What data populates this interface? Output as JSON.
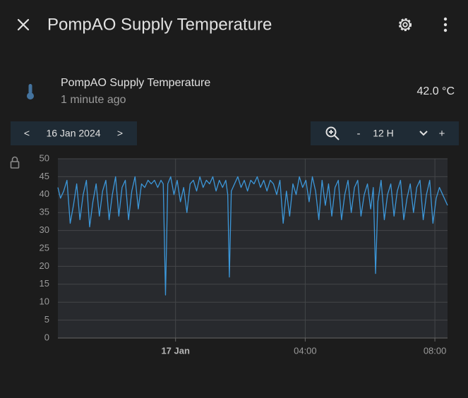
{
  "header": {
    "title": "PompAO Supply Temperature"
  },
  "entity": {
    "name": "PompAO Supply Temperature",
    "last_changed": "1 minute ago",
    "state": "42.0 °C"
  },
  "date_picker": {
    "prev": "<",
    "date": "16 Jan 2024",
    "next": ">"
  },
  "range_picker": {
    "minus": "-",
    "range": "12 H",
    "plus": "+"
  },
  "chart_data": {
    "type": "line",
    "color": "#3c97d9",
    "grid": true,
    "xlim": [
      -3.63,
      8.39
    ],
    "xticks": [
      {
        "value": 0,
        "label": "17 Jan"
      },
      {
        "value": 4,
        "label": "04:00"
      },
      {
        "value": 8,
        "label": "08:00"
      }
    ],
    "ylim": [
      0,
      50
    ],
    "yticks": [
      0,
      5,
      10,
      15,
      20,
      25,
      30,
      35,
      40,
      45,
      50
    ],
    "x": [
      -3.63,
      -3.55,
      -3.45,
      -3.35,
      -3.25,
      -3.15,
      -3.05,
      -2.95,
      -2.85,
      -2.75,
      -2.65,
      -2.55,
      -2.45,
      -2.35,
      -2.25,
      -2.15,
      -2.05,
      -1.95,
      -1.85,
      -1.75,
      -1.65,
      -1.55,
      -1.45,
      -1.35,
      -1.25,
      -1.15,
      -1.05,
      -0.95,
      -0.85,
      -0.75,
      -0.65,
      -0.55,
      -0.45,
      -0.38,
      -0.31,
      -0.24,
      -0.15,
      -0.05,
      0.05,
      0.15,
      0.25,
      0.35,
      0.45,
      0.55,
      0.65,
      0.75,
      0.85,
      0.95,
      1.05,
      1.15,
      1.25,
      1.35,
      1.45,
      1.55,
      1.61,
      1.66,
      1.72,
      1.82,
      1.92,
      2.02,
      2.12,
      2.22,
      2.32,
      2.42,
      2.52,
      2.62,
      2.72,
      2.82,
      2.92,
      3.02,
      3.12,
      3.22,
      3.32,
      3.42,
      3.52,
      3.62,
      3.72,
      3.82,
      3.92,
      4.02,
      4.12,
      4.22,
      4.32,
      4.42,
      4.52,
      4.62,
      4.72,
      4.82,
      4.92,
      5.02,
      5.12,
      5.22,
      5.32,
      5.42,
      5.52,
      5.62,
      5.72,
      5.82,
      5.92,
      6.02,
      6.1,
      6.17,
      6.24,
      6.34,
      6.44,
      6.54,
      6.64,
      6.74,
      6.84,
      6.94,
      7.04,
      7.14,
      7.24,
      7.34,
      7.44,
      7.54,
      7.64,
      7.74,
      7.84,
      7.94,
      8.04,
      8.14,
      8.24,
      8.39
    ],
    "values": [
      42,
      39,
      41,
      44,
      32,
      37,
      43,
      33,
      40,
      44,
      31,
      38,
      43,
      34,
      41,
      44,
      33,
      40,
      45,
      34,
      42,
      44,
      33,
      41,
      45,
      36,
      43,
      42,
      44,
      43,
      44,
      42,
      44,
      43,
      12,
      43,
      45,
      40,
      44,
      38,
      42,
      35,
      43,
      44,
      41,
      45,
      42,
      44,
      43,
      45,
      41,
      44,
      42,
      44,
      40,
      17,
      41,
      43,
      45,
      42,
      44,
      41,
      44,
      43,
      45,
      42,
      44,
      41,
      44,
      43,
      40,
      44,
      32,
      41,
      34,
      43,
      40,
      45,
      42,
      44,
      38,
      45,
      41,
      33,
      44,
      37,
      43,
      34,
      42,
      44,
      33,
      40,
      44,
      35,
      42,
      44,
      34,
      40,
      43,
      36,
      42,
      18,
      38,
      44,
      33,
      40,
      43,
      34,
      41,
      44,
      33,
      39,
      43,
      35,
      42,
      44,
      33,
      40,
      44,
      32,
      39,
      42,
      40,
      37
    ]
  }
}
